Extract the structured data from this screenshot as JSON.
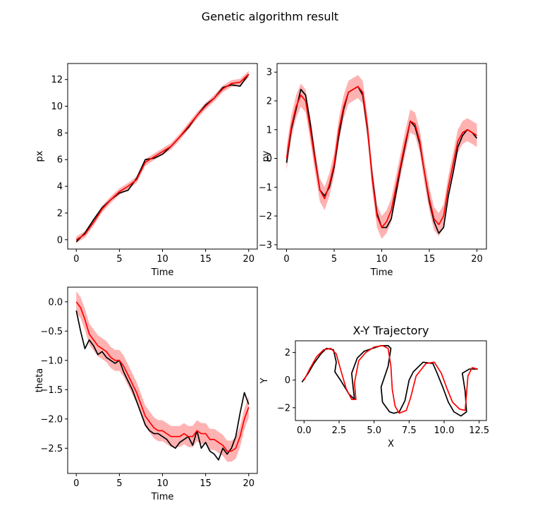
{
  "figure": {
    "title": "Genetic algorithm result"
  },
  "chart_data": [
    {
      "type": "line",
      "id": "px",
      "xlabel": "Time",
      "ylabel": "px",
      "title": "",
      "xlim": [
        -1,
        21
      ],
      "ylim": [
        -0.7,
        13.2
      ],
      "xticks": [
        0,
        5,
        10,
        15,
        20
      ],
      "yticks": [
        0,
        2,
        4,
        6,
        8,
        10,
        12
      ],
      "x": [
        0,
        1,
        2,
        3,
        4,
        5,
        6,
        7,
        8,
        9,
        10,
        11,
        12,
        13,
        14,
        15,
        16,
        17,
        18,
        19,
        20
      ],
      "series": [
        {
          "color": "#000000",
          "values": [
            -0.15,
            0.5,
            1.5,
            2.4,
            3.0,
            3.5,
            3.7,
            4.6,
            6.0,
            6.1,
            6.4,
            7.0,
            7.7,
            8.4,
            9.3,
            10.1,
            10.6,
            11.4,
            11.6,
            11.5,
            12.4
          ]
        },
        {
          "color": "#ff0000",
          "band": 0.25,
          "values": [
            0.0,
            0.4,
            1.3,
            2.3,
            3.0,
            3.6,
            4.0,
            4.5,
            5.8,
            6.2,
            6.6,
            7.0,
            7.7,
            8.5,
            9.3,
            10.0,
            10.6,
            11.3,
            11.7,
            11.8,
            12.4
          ]
        }
      ]
    },
    {
      "type": "line",
      "id": "py",
      "xlabel": "Time",
      "ylabel": "py",
      "title": "",
      "xlim": [
        -1,
        21
      ],
      "ylim": [
        -3.15,
        3.3
      ],
      "xticks": [
        0,
        5,
        10,
        15,
        20
      ],
      "yticks": [
        -3,
        -2,
        -1,
        0,
        1,
        2,
        3
      ],
      "x": [
        0,
        0.5,
        1,
        1.5,
        2,
        2.5,
        3,
        3.5,
        4,
        4.5,
        5,
        5.5,
        6,
        6.5,
        7,
        7.5,
        8,
        8.5,
        9,
        9.5,
        10,
        10.5,
        11,
        11.5,
        12,
        12.5,
        13,
        13.5,
        14,
        14.5,
        15,
        15.5,
        16,
        16.5,
        17,
        17.5,
        18,
        18.5,
        19,
        19.5,
        20
      ],
      "series": [
        {
          "color": "#000000",
          "values": [
            -0.15,
            1.0,
            1.7,
            2.4,
            2.2,
            1.2,
            0.0,
            -1.1,
            -1.3,
            -1.0,
            -0.3,
            0.8,
            1.7,
            2.3,
            2.4,
            2.5,
            2.2,
            1.0,
            -0.6,
            -1.9,
            -2.4,
            -2.4,
            -2.1,
            -1.2,
            -0.3,
            0.5,
            1.3,
            1.1,
            0.5,
            -0.5,
            -1.5,
            -2.2,
            -2.6,
            -2.4,
            -1.3,
            -0.5,
            0.4,
            0.8,
            1.0,
            0.9,
            0.7
          ]
        },
        {
          "color": "#ff0000",
          "band": 0.4,
          "values": [
            0.0,
            1.1,
            1.8,
            2.2,
            2.0,
            1.0,
            -0.1,
            -1.1,
            -1.4,
            -0.9,
            -0.2,
            1.0,
            1.8,
            2.3,
            2.4,
            2.5,
            2.3,
            1.1,
            -0.7,
            -2.0,
            -2.4,
            -2.2,
            -1.8,
            -1.0,
            -0.2,
            0.6,
            1.3,
            1.2,
            0.6,
            -0.5,
            -1.4,
            -2.1,
            -2.3,
            -2.0,
            -1.0,
            -0.2,
            0.6,
            0.9,
            1.0,
            0.9,
            0.8
          ]
        }
      ]
    },
    {
      "type": "line",
      "id": "theta",
      "xlabel": "Time",
      "ylabel": "theta",
      "title": "",
      "xlim": [
        -1,
        21
      ],
      "ylim": [
        -2.93,
        0.25
      ],
      "xticks": [
        0,
        5,
        10,
        15,
        20
      ],
      "yticks": [
        -2.5,
        -2.0,
        -1.5,
        -1.0,
        -0.5,
        0.0
      ],
      "yticklabels": [
        "−2.5",
        "−2.0",
        "−1.5",
        "−1.0",
        "−0.5",
        "0.0"
      ],
      "x": [
        0,
        0.5,
        1,
        1.5,
        2,
        2.5,
        3,
        3.5,
        4,
        4.5,
        5,
        5.5,
        6,
        6.5,
        7,
        7.5,
        8,
        8.5,
        9,
        9.5,
        10,
        10.5,
        11,
        11.5,
        12,
        12.5,
        13,
        13.5,
        14,
        14.5,
        15,
        15.5,
        16,
        16.5,
        17,
        17.5,
        18,
        18.5,
        19,
        19.5,
        20
      ],
      "series": [
        {
          "color": "#000000",
          "values": [
            -0.15,
            -0.5,
            -0.8,
            -0.65,
            -0.75,
            -0.9,
            -0.85,
            -0.95,
            -1.0,
            -1.05,
            -1.0,
            -1.2,
            -1.35,
            -1.5,
            -1.7,
            -1.9,
            -2.1,
            -2.2,
            -2.25,
            -2.25,
            -2.3,
            -2.35,
            -2.45,
            -2.5,
            -2.4,
            -2.35,
            -2.3,
            -2.45,
            -2.2,
            -2.5,
            -2.4,
            -2.55,
            -2.6,
            -2.7,
            -2.5,
            -2.6,
            -2.5,
            -2.3,
            -1.9,
            -1.55,
            -1.75
          ]
        },
        {
          "color": "#ff0000",
          "band": 0.18,
          "values": [
            0.0,
            -0.1,
            -0.3,
            -0.55,
            -0.65,
            -0.75,
            -0.8,
            -0.85,
            -0.95,
            -1.0,
            -1.0,
            -1.1,
            -1.25,
            -1.4,
            -1.55,
            -1.75,
            -1.95,
            -2.05,
            -2.15,
            -2.2,
            -2.2,
            -2.25,
            -2.3,
            -2.3,
            -2.3,
            -2.25,
            -2.3,
            -2.3,
            -2.2,
            -2.25,
            -2.25,
            -2.35,
            -2.35,
            -2.4,
            -2.45,
            -2.55,
            -2.55,
            -2.5,
            -2.3,
            -2.0,
            -1.8
          ]
        }
      ]
    },
    {
      "type": "line",
      "id": "xy",
      "xlabel": "X",
      "ylabel": "Y",
      "title": "X-Y Trajectory",
      "xlim": [
        -0.62,
        13.02
      ],
      "ylim": [
        -2.93,
        2.85
      ],
      "xticks": [
        0.0,
        2.5,
        5.0,
        7.5,
        10.0,
        12.5
      ],
      "xticklabels": [
        "0.0",
        "2.5",
        "5.0",
        "7.5",
        "10.0",
        "12.5"
      ],
      "yticks": [
        -2,
        0,
        2
      ],
      "yticklabels": [
        "−2",
        "0",
        "2"
      ],
      "series": [
        {
          "color": "#000000",
          "x": [
            -0.15,
            0.3,
            0.7,
            1.2,
            1.6,
            2.1,
            2.3,
            2.2,
            2.6,
            3.2,
            3.6,
            3.5,
            3.4,
            3.8,
            4.3,
            4.9,
            5.5,
            6.0,
            6.2,
            6.0,
            5.5,
            5.6,
            6.1,
            6.4,
            6.8,
            7.2,
            7.5,
            7.8,
            8.5,
            9.2,
            9.5,
            9.9,
            10.3,
            10.7,
            11.2,
            11.6,
            11.5,
            11.3,
            11.8,
            12.4
          ],
          "y": [
            -0.15,
            0.5,
            1.2,
            1.9,
            2.3,
            2.2,
            1.3,
            0.6,
            0.0,
            -1.0,
            -1.4,
            -0.5,
            0.5,
            1.6,
            2.1,
            2.3,
            2.5,
            2.5,
            2.3,
            1.0,
            -0.5,
            -1.6,
            -2.3,
            -2.4,
            -2.3,
            -1.5,
            0.0,
            0.6,
            1.3,
            1.2,
            0.5,
            -0.5,
            -1.6,
            -2.3,
            -2.6,
            -2.3,
            -0.8,
            0.5,
            0.8,
            0.8
          ]
        },
        {
          "color": "#ff0000",
          "x": [
            0.0,
            0.4,
            0.9,
            1.4,
            1.9,
            2.3,
            2.6,
            3.0,
            3.4,
            3.7,
            3.6,
            3.9,
            4.4,
            5.0,
            5.6,
            6.0,
            6.2,
            6.3,
            6.5,
            6.8,
            7.3,
            7.6,
            8.0,
            8.7,
            9.3,
            9.8,
            10.2,
            10.6,
            11.1,
            11.5,
            11.6,
            11.7,
            12.0,
            12.4
          ],
          "y": [
            0.0,
            0.8,
            1.7,
            2.2,
            2.3,
            1.9,
            0.8,
            -0.6,
            -1.4,
            -1.4,
            -0.2,
            1.4,
            2.0,
            2.4,
            2.5,
            2.3,
            1.0,
            -0.7,
            -1.9,
            -2.4,
            -2.2,
            -1.3,
            0.3,
            1.2,
            1.3,
            0.5,
            -0.6,
            -1.6,
            -2.1,
            -2.2,
            -1.0,
            0.3,
            0.9,
            0.8
          ]
        }
      ]
    }
  ]
}
